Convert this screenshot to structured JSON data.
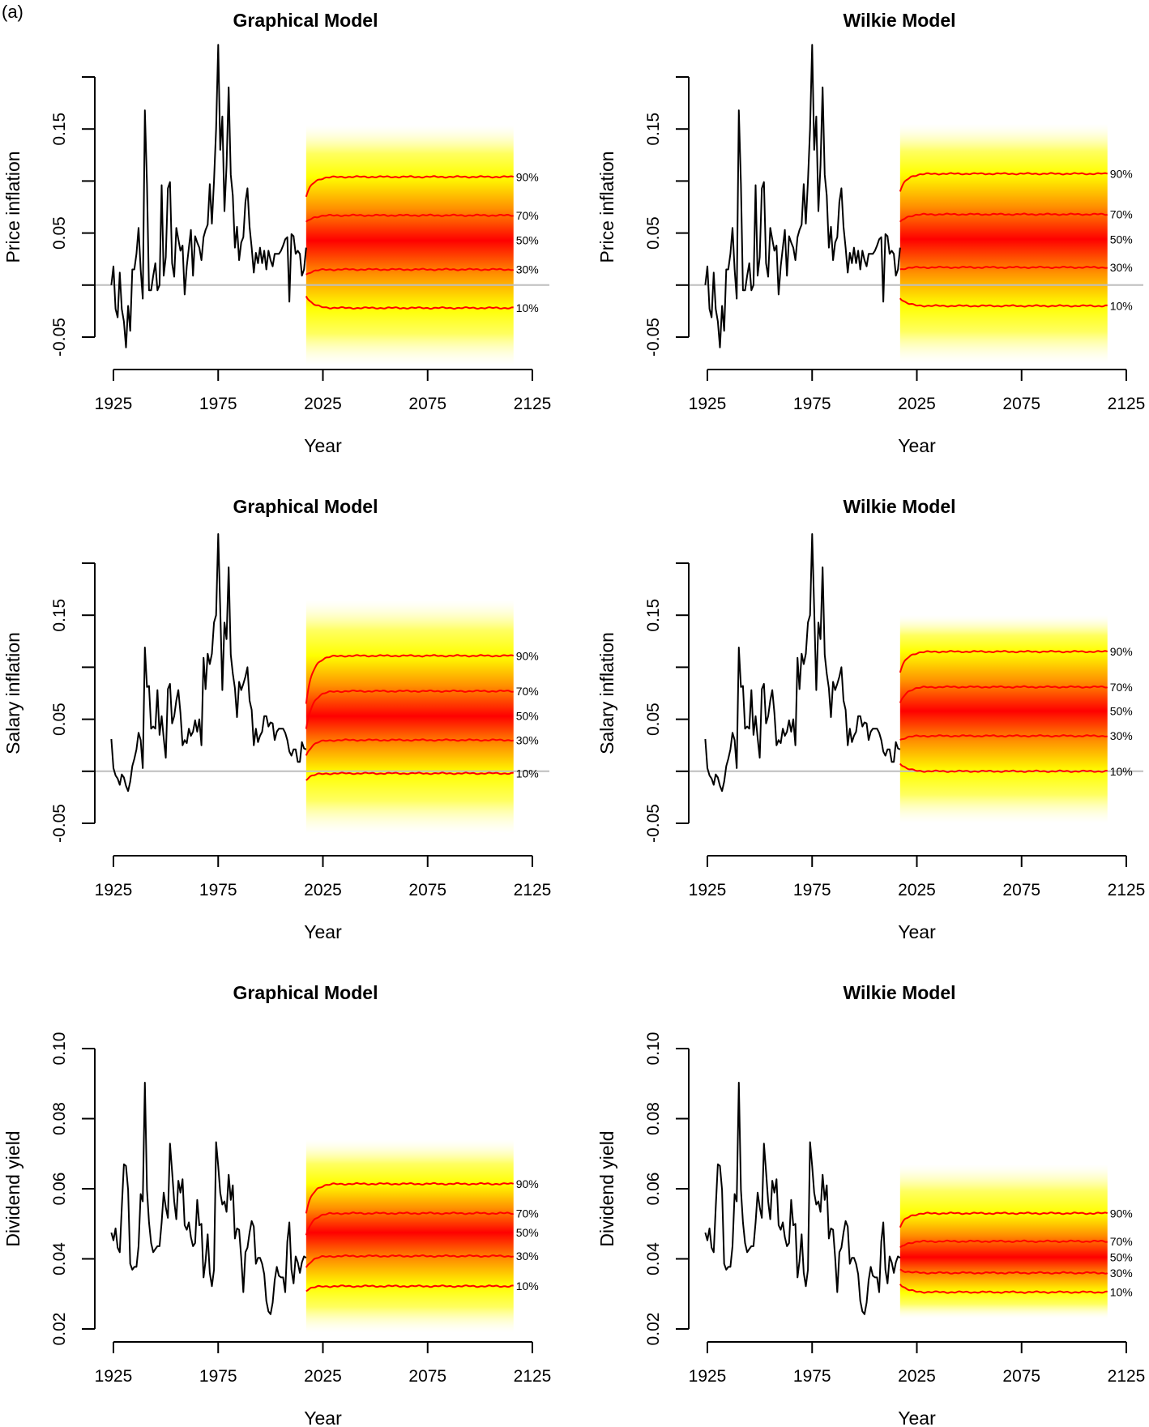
{
  "figure_label": "(a)",
  "colors": {
    "history": "#000000",
    "quantile_line": "#ff0000",
    "fan_outer": "#ffffff",
    "fan_mid": "#ffff00",
    "fan_center": "#ff0000",
    "reference_line": "#bebebe"
  },
  "chart_data": [
    {
      "type": "line",
      "title": "Graphical Model",
      "xlabel": "Year",
      "ylabel": "Price inflation",
      "xticks": [
        1925,
        1975,
        2025,
        2075,
        2125
      ],
      "yticks": [
        -0.05,
        0.05,
        0.15
      ],
      "yaxis_ticks": [
        -0.05,
        0,
        0.05,
        0.1,
        0.15,
        0.2
      ],
      "yaxis_range": [
        -0.05,
        0.2
      ],
      "reference_line": 0,
      "history_start": 1924,
      "history": [
        0,
        0.018,
        -0.023,
        -0.031,
        0.012,
        -0.023,
        -0.035,
        -0.06,
        -0.02,
        -0.044,
        0.015,
        0.015,
        0.03,
        0.055,
        0.015,
        -0.013,
        0.168,
        0.097,
        -0.005,
        -0.005,
        0.009,
        0.021,
        -0.005,
        0,
        0.096,
        0.009,
        0.027,
        0.093,
        0.099,
        0.021,
        0.008,
        0.055,
        0.044,
        0.033,
        0.038,
        -0.009,
        0.018,
        0.036,
        0.053,
        0.009,
        0.047,
        0.041,
        0.036,
        0.024,
        0.046,
        0.053,
        0.058,
        0.097,
        0.059,
        0.1,
        0.15,
        0.231,
        0.13,
        0.162,
        0.071,
        0.115,
        0.19,
        0.106,
        0.086,
        0.036,
        0.056,
        0.024,
        0.041,
        0.046,
        0.08,
        0.093,
        0.056,
        0.036,
        0.012,
        0.031,
        0.021,
        0.036,
        0.021,
        0.033,
        0.015,
        0.033,
        0.024,
        0.018,
        0.03,
        0.03,
        0.03,
        0.033,
        0.038,
        0.044,
        0.046,
        -0.016,
        0.049,
        0.047,
        0.03,
        0.033,
        0.03,
        0.009,
        0.015,
        0.036
      ],
      "forecast_years": [
        2017,
        2116
      ],
      "fan_range": [
        -0.077,
        0.154
      ],
      "median": 0.043,
      "quantiles": [
        {
          "label": "90%",
          "start": 0.085,
          "level": 0.104
        },
        {
          "label": "70%",
          "start": 0.06,
          "level": 0.067
        },
        {
          "label": "50%",
          "start": 0.043,
          "level": 0.043,
          "line": false
        },
        {
          "label": "30%",
          "start": 0.01,
          "level": 0.015
        },
        {
          "label": "10%",
          "start": -0.01,
          "level": -0.022
        }
      ]
    },
    {
      "type": "line",
      "title": "Wilkie Model",
      "xlabel": "Year",
      "ylabel": "Price inflation",
      "xticks": [
        1925,
        1975,
        2025,
        2075,
        2125
      ],
      "yticks": [
        -0.05,
        0.05,
        0.15
      ],
      "yaxis_ticks": [
        -0.05,
        0,
        0.05,
        0.1,
        0.15,
        0.2
      ],
      "yaxis_range": [
        -0.05,
        0.2
      ],
      "reference_line": 0,
      "history_start": 1924,
      "history": [
        0,
        0.018,
        -0.023,
        -0.031,
        0.012,
        -0.023,
        -0.035,
        -0.06,
        -0.02,
        -0.044,
        0.015,
        0.015,
        0.03,
        0.055,
        0.015,
        -0.013,
        0.168,
        0.097,
        -0.005,
        -0.005,
        0.009,
        0.021,
        -0.005,
        0,
        0.096,
        0.009,
        0.027,
        0.093,
        0.099,
        0.021,
        0.008,
        0.055,
        0.044,
        0.033,
        0.038,
        -0.009,
        0.018,
        0.036,
        0.053,
        0.009,
        0.047,
        0.041,
        0.036,
        0.024,
        0.046,
        0.053,
        0.058,
        0.097,
        0.059,
        0.1,
        0.15,
        0.231,
        0.13,
        0.162,
        0.071,
        0.115,
        0.19,
        0.106,
        0.086,
        0.036,
        0.056,
        0.024,
        0.041,
        0.046,
        0.08,
        0.093,
        0.056,
        0.036,
        0.012,
        0.031,
        0.021,
        0.036,
        0.021,
        0.033,
        0.015,
        0.033,
        0.024,
        0.018,
        0.03,
        0.03,
        0.03,
        0.033,
        0.038,
        0.044,
        0.046,
        -0.016,
        0.049,
        0.047,
        0.03,
        0.033,
        0.03,
        0.009,
        0.015,
        0.036
      ],
      "forecast_years": [
        2017,
        2116
      ],
      "fan_range": [
        -0.075,
        0.155
      ],
      "median": 0.044,
      "quantiles": [
        {
          "label": "90%",
          "start": 0.09,
          "level": 0.107
        },
        {
          "label": "70%",
          "start": 0.06,
          "level": 0.068
        },
        {
          "label": "50%",
          "start": 0.044,
          "level": 0.044,
          "line": false
        },
        {
          "label": "30%",
          "start": 0.015,
          "level": 0.017
        },
        {
          "label": "10%",
          "start": -0.012,
          "level": -0.02
        }
      ]
    },
    {
      "type": "line",
      "title": "Graphical Model",
      "xlabel": "Year",
      "ylabel": "Salary inflation",
      "xticks": [
        1925,
        1975,
        2025,
        2075,
        2125
      ],
      "yticks": [
        -0.05,
        0.05,
        0.15
      ],
      "yaxis_ticks": [
        -0.05,
        0,
        0.05,
        0.1,
        0.15,
        0.2
      ],
      "yaxis_range": [
        -0.05,
        0.2
      ],
      "reference_line": 0,
      "history_start": 1924,
      "history": [
        0.031,
        0.003,
        -0.004,
        -0.007,
        -0.013,
        -0.003,
        -0.006,
        -0.014,
        -0.019,
        -0.01,
        0.005,
        0.012,
        0.021,
        0.037,
        0.03,
        0.003,
        0.119,
        0.081,
        0.082,
        0.041,
        0.043,
        0.041,
        0.078,
        0.035,
        0.053,
        0.032,
        0.013,
        0.079,
        0.084,
        0.046,
        0.053,
        0.068,
        0.078,
        0.056,
        0.025,
        0.03,
        0.027,
        0.041,
        0.034,
        0.038,
        0.049,
        0.038,
        0.05,
        0.025,
        0.109,
        0.079,
        0.113,
        0.103,
        0.113,
        0.143,
        0.15,
        0.228,
        0.156,
        0.078,
        0.143,
        0.127,
        0.196,
        0.112,
        0.094,
        0.08,
        0.052,
        0.086,
        0.078,
        0.084,
        0.091,
        0.1,
        0.068,
        0.059,
        0.025,
        0.041,
        0.028,
        0.034,
        0.038,
        0.053,
        0.053,
        0.043,
        0.047,
        0.046,
        0.03,
        0.038,
        0.041,
        0.041,
        0.041,
        0.037,
        0.03,
        0.019,
        0.015,
        0.021,
        0.021,
        0.009,
        0.009,
        0.028,
        0.022,
        0.021
      ],
      "forecast_years": [
        2017,
        2116
      ],
      "fan_range": [
        -0.06,
        0.165
      ],
      "median": 0.053,
      "quantiles": [
        {
          "label": "90%",
          "start": 0.065,
          "level": 0.111
        },
        {
          "label": "70%",
          "start": 0.04,
          "level": 0.077
        },
        {
          "label": "50%",
          "start": 0.03,
          "level": 0.053,
          "line": false
        },
        {
          "label": "30%",
          "start": 0.015,
          "level": 0.03
        },
        {
          "label": "10%",
          "start": -0.008,
          "level": -0.002
        }
      ]
    },
    {
      "type": "line",
      "title": "Wilkie Model",
      "xlabel": "Year",
      "ylabel": "Salary inflation",
      "xticks": [
        1925,
        1975,
        2025,
        2075,
        2125
      ],
      "yticks": [
        -0.05,
        0.05,
        0.15
      ],
      "yaxis_ticks": [
        -0.05,
        0,
        0.05,
        0.1,
        0.15,
        0.2
      ],
      "yaxis_range": [
        -0.05,
        0.2
      ],
      "reference_line": 0,
      "history_start": 1924,
      "history": [
        0.031,
        0.003,
        -0.004,
        -0.007,
        -0.013,
        -0.003,
        -0.006,
        -0.014,
        -0.019,
        -0.01,
        0.005,
        0.012,
        0.021,
        0.037,
        0.03,
        0.003,
        0.119,
        0.081,
        0.082,
        0.041,
        0.043,
        0.041,
        0.078,
        0.035,
        0.053,
        0.032,
        0.013,
        0.079,
        0.084,
        0.046,
        0.053,
        0.068,
        0.078,
        0.056,
        0.025,
        0.03,
        0.027,
        0.041,
        0.034,
        0.038,
        0.049,
        0.038,
        0.05,
        0.025,
        0.109,
        0.079,
        0.113,
        0.103,
        0.113,
        0.143,
        0.15,
        0.228,
        0.156,
        0.078,
        0.143,
        0.127,
        0.196,
        0.112,
        0.094,
        0.08,
        0.052,
        0.086,
        0.078,
        0.084,
        0.091,
        0.1,
        0.068,
        0.059,
        0.025,
        0.041,
        0.028,
        0.034,
        0.038,
        0.053,
        0.053,
        0.043,
        0.047,
        0.046,
        0.03,
        0.038,
        0.041,
        0.041,
        0.041,
        0.037,
        0.03,
        0.019,
        0.015,
        0.021,
        0.021,
        0.009,
        0.009,
        0.028,
        0.022,
        0.021
      ],
      "forecast_years": [
        2017,
        2116
      ],
      "fan_range": [
        -0.05,
        0.15
      ],
      "median": 0.058,
      "quantiles": [
        {
          "label": "90%",
          "start": 0.095,
          "level": 0.115
        },
        {
          "label": "70%",
          "start": 0.065,
          "level": 0.081
        },
        {
          "label": "50%",
          "start": 0.05,
          "level": 0.058,
          "line": false
        },
        {
          "label": "30%",
          "start": 0.03,
          "level": 0.034
        },
        {
          "label": "10%",
          "start": 0.008,
          "level": 0.0
        }
      ]
    },
    {
      "type": "line",
      "title": "Graphical Model",
      "xlabel": "Year",
      "ylabel": "Dividend yield",
      "xticks": [
        1925,
        1975,
        2025,
        2075,
        2125
      ],
      "yticks": [
        0.02,
        0.04,
        0.06,
        0.08,
        0.1
      ],
      "yaxis_ticks": [
        0.02,
        0.04,
        0.06,
        0.08,
        0.1
      ],
      "yaxis_range": [
        0.02,
        0.1
      ],
      "history_start": 1924,
      "history": [
        0.0475,
        0.0453,
        0.0487,
        0.0432,
        0.0419,
        0.0547,
        0.067,
        0.0665,
        0.0597,
        0.0386,
        0.0369,
        0.0377,
        0.0377,
        0.0436,
        0.0585,
        0.0564,
        0.0903,
        0.0597,
        0.0504,
        0.0445,
        0.0419,
        0.0428,
        0.0436,
        0.0436,
        0.0504,
        0.0589,
        0.0547,
        0.0517,
        0.0729,
        0.0649,
        0.0564,
        0.0513,
        0.0623,
        0.0589,
        0.0627,
        0.0496,
        0.0483,
        0.0504,
        0.0462,
        0.0436,
        0.0445,
        0.0568,
        0.0496,
        0.05,
        0.0347,
        0.0394,
        0.047,
        0.036,
        0.0322,
        0.0369,
        0.0733,
        0.0665,
        0.0589,
        0.0555,
        0.0564,
        0.0534,
        0.064,
        0.0568,
        0.061,
        0.0458,
        0.0487,
        0.0483,
        0.0403,
        0.0305,
        0.0419,
        0.0432,
        0.0475,
        0.0508,
        0.0492,
        0.0386,
        0.0403,
        0.0403,
        0.0386,
        0.0356,
        0.028,
        0.025,
        0.0242,
        0.0275,
        0.0339,
        0.0377,
        0.0352,
        0.0347,
        0.0347,
        0.0305,
        0.0449,
        0.0504,
        0.0369,
        0.033,
        0.0407,
        0.039,
        0.036,
        0.039,
        0.0407,
        0.0403
      ],
      "forecast_years": [
        2017,
        2116
      ],
      "fan_range": [
        0.019,
        0.074
      ],
      "median": 0.0475,
      "quantiles": [
        {
          "label": "90%",
          "start": 0.053,
          "level": 0.0614
        },
        {
          "label": "70%",
          "start": 0.0465,
          "level": 0.053
        },
        {
          "label": "50%",
          "start": 0.042,
          "level": 0.0475,
          "line": false
        },
        {
          "label": "30%",
          "start": 0.0375,
          "level": 0.0408
        },
        {
          "label": "10%",
          "start": 0.031,
          "level": 0.0322
        }
      ]
    },
    {
      "type": "line",
      "title": "Wilkie Model",
      "xlabel": "Year",
      "ylabel": "Dividend yield",
      "xticks": [
        1925,
        1975,
        2025,
        2075,
        2125
      ],
      "yticks": [
        0.02,
        0.04,
        0.06,
        0.08,
        0.1
      ],
      "yaxis_ticks": [
        0.02,
        0.04,
        0.06,
        0.08,
        0.1
      ],
      "yaxis_range": [
        0.02,
        0.1
      ],
      "history_start": 1924,
      "history": [
        0.0475,
        0.0453,
        0.0487,
        0.0432,
        0.0419,
        0.0547,
        0.067,
        0.0665,
        0.0597,
        0.0386,
        0.0369,
        0.0377,
        0.0377,
        0.0436,
        0.0585,
        0.0564,
        0.0903,
        0.0597,
        0.0504,
        0.0445,
        0.0419,
        0.0428,
        0.0436,
        0.0436,
        0.0504,
        0.0589,
        0.0547,
        0.0517,
        0.0729,
        0.0649,
        0.0564,
        0.0513,
        0.0623,
        0.0589,
        0.0627,
        0.0496,
        0.0483,
        0.0504,
        0.0462,
        0.0436,
        0.0445,
        0.0568,
        0.0496,
        0.05,
        0.0347,
        0.0394,
        0.047,
        0.036,
        0.0322,
        0.0369,
        0.0733,
        0.0665,
        0.0589,
        0.0555,
        0.0564,
        0.0534,
        0.064,
        0.0568,
        0.061,
        0.0458,
        0.0487,
        0.0483,
        0.0403,
        0.0305,
        0.0419,
        0.0432,
        0.0475,
        0.0508,
        0.0492,
        0.0386,
        0.0403,
        0.0403,
        0.0386,
        0.0356,
        0.028,
        0.025,
        0.0242,
        0.0275,
        0.0339,
        0.0377,
        0.0352,
        0.0347,
        0.0347,
        0.0305,
        0.0449,
        0.0504,
        0.0369,
        0.033,
        0.0407,
        0.039,
        0.036,
        0.039,
        0.0407,
        0.0403
      ],
      "forecast_years": [
        2017,
        2116
      ],
      "fan_range": [
        0.023,
        0.067
      ],
      "median": 0.0405,
      "quantiles": [
        {
          "label": "90%",
          "start": 0.049,
          "level": 0.053
        },
        {
          "label": "70%",
          "start": 0.043,
          "level": 0.045
        },
        {
          "label": "50%",
          "start": 0.0405,
          "level": 0.0405,
          "line": false
        },
        {
          "label": "30%",
          "start": 0.037,
          "level": 0.036
        },
        {
          "label": "10%",
          "start": 0.033,
          "level": 0.0305
        }
      ]
    }
  ]
}
